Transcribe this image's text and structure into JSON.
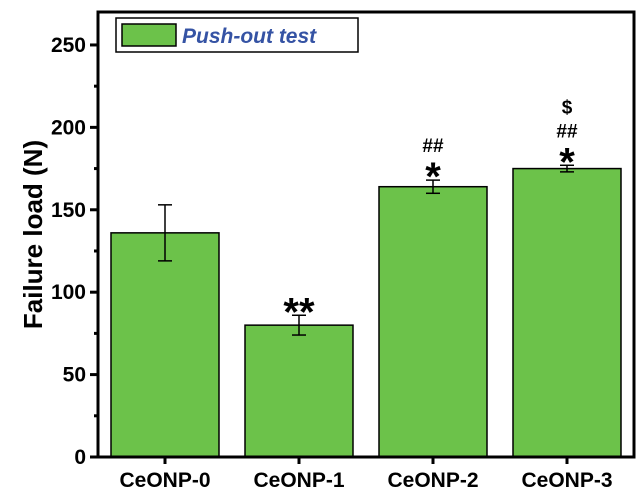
{
  "chart_data": {
    "type": "bar",
    "categories": [
      "CeONP-0",
      "CeONP-1",
      "CeONP-2",
      "CeONP-3"
    ],
    "series": [
      {
        "name": "Push-out test",
        "values": [
          136,
          80,
          164,
          175
        ],
        "errors": [
          17,
          6,
          4,
          2
        ]
      }
    ],
    "annotations": [
      {
        "category_index": 1,
        "lines": [
          "**"
        ]
      },
      {
        "category_index": 2,
        "lines": [
          "##",
          "*"
        ]
      },
      {
        "category_index": 3,
        "lines": [
          "$",
          "##",
          "*"
        ]
      }
    ],
    "ylabel": "Failure load (N)",
    "xlabel": "",
    "ylim": [
      0,
      270
    ],
    "yticks": [
      0,
      50,
      100,
      150,
      200,
      250
    ],
    "grid": false,
    "legend_position": "top-left",
    "colors": {
      "bar": "#6cc24a",
      "legend_text": "#3553a4",
      "axis": "#000000"
    }
  }
}
